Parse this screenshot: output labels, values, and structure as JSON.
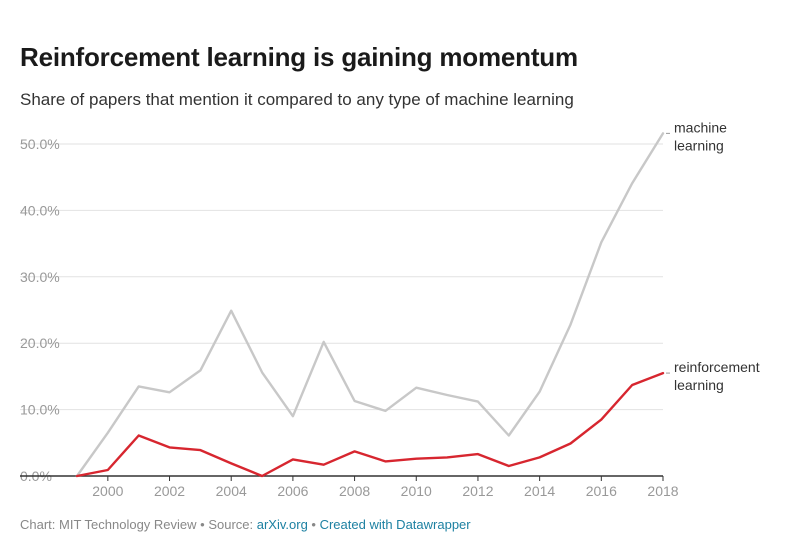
{
  "title": "Reinforcement learning is gaining momentum",
  "subtitle": "Share of papers that mention it compared to any type of machine learning",
  "footer": {
    "chart_prefix": "Chart: MIT Technology Review",
    "sep1": " • ",
    "source_prefix": "Source: ",
    "source_link": "arXiv.org",
    "sep2": " • ",
    "created_with": "Created with Datawrapper"
  },
  "colors": {
    "machine_learning": "#c8c8c8",
    "reinforcement_learning": "#d7262f",
    "grid": "#e2e2e2",
    "axis": "#333333",
    "tick_text": "#999999",
    "label_text": "#333333"
  },
  "chart_data": {
    "type": "line",
    "title": "Reinforcement learning is gaining momentum",
    "subtitle": "Share of papers that mention it compared to any type of machine learning",
    "xlabel": "",
    "ylabel": "",
    "xlim": [
      1999,
      2018
    ],
    "ylim": [
      0,
      50
    ],
    "grid": true,
    "x": [
      1999,
      2000,
      2001,
      2002,
      2003,
      2004,
      2005,
      2006,
      2007,
      2008,
      2009,
      2010,
      2011,
      2012,
      2013,
      2014,
      2015,
      2016,
      2017,
      2018
    ],
    "x_ticks": [
      2000,
      2002,
      2004,
      2006,
      2008,
      2010,
      2012,
      2014,
      2016,
      2018
    ],
    "y_ticks": [
      {
        "value": 0,
        "label": "0.0%"
      },
      {
        "value": 10,
        "label": "10.0%"
      },
      {
        "value": 20,
        "label": "20.0%"
      },
      {
        "value": 30,
        "label": "30.0%"
      },
      {
        "value": 40,
        "label": "40.0%"
      },
      {
        "value": 50,
        "label": "50.0%"
      }
    ],
    "series": [
      {
        "name": "machine learning",
        "label_lines": [
          "machine",
          "learning"
        ],
        "color_key": "machine_learning",
        "values": [
          0,
          6.5,
          13.5,
          12.6,
          15.9,
          24.9,
          15.6,
          9.0,
          20.2,
          11.3,
          9.8,
          13.3,
          12.2,
          11.2,
          6.1,
          12.7,
          22.8,
          35.2,
          44.1,
          51.6
        ]
      },
      {
        "name": "reinforcement learning",
        "label_lines": [
          "reinforcement",
          "learning"
        ],
        "color_key": "reinforcement_learning",
        "values": [
          0,
          0.9,
          6.1,
          4.3,
          3.9,
          1.9,
          0,
          2.5,
          1.7,
          3.7,
          2.2,
          2.6,
          2.8,
          3.3,
          1.5,
          2.8,
          4.9,
          8.5,
          13.7,
          15.5
        ]
      }
    ]
  }
}
